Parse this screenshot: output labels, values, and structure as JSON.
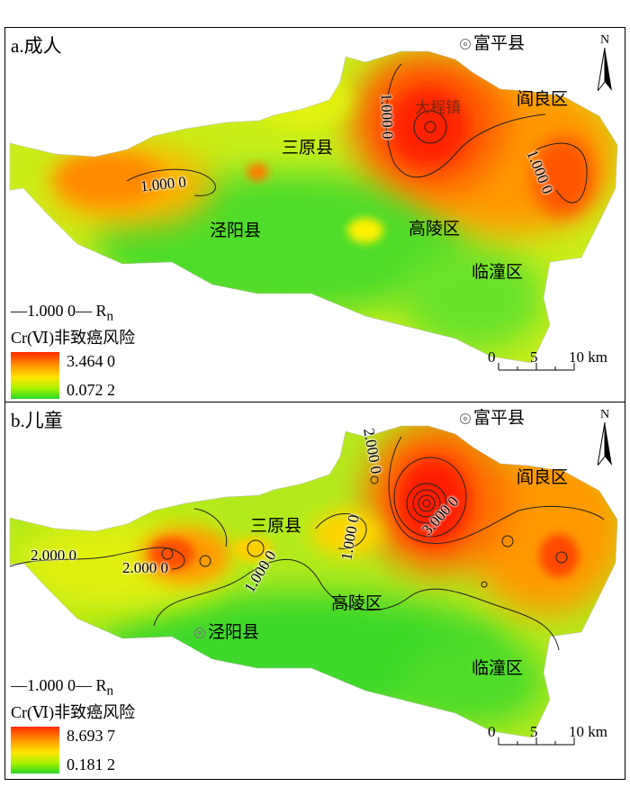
{
  "shared": {
    "legend_line": "—1.000 0— R",
    "legend_sub": "n",
    "legend_title": "Cr(Ⅵ)非致癌风险",
    "scale_labels": [
      "0",
      "5",
      "10 km"
    ],
    "north": "N",
    "places": {
      "fuping": "富平县",
      "yanliang": "阎良区",
      "sanyuan": "三原县",
      "jingyang": "泾阳县",
      "gaoling": "高陵区",
      "lintong": "临潼区",
      "dachengzhen": "大程镇"
    }
  },
  "panel_a": {
    "title": "a.成人",
    "legend_max": "3.464 0",
    "legend_min": "0.072 2",
    "contours": {
      "c1": "1.000 0",
      "c2": "1.000 0",
      "c3": "1.000 0"
    }
  },
  "panel_b": {
    "title": "b.儿童",
    "legend_max": "8.693 7",
    "legend_min": "0.181 2",
    "contours": {
      "c1": "2.000 0",
      "c2": "2.000 0",
      "c3": "2.000 0",
      "c4": "1.000 0",
      "c5": "1.000 0",
      "c6": "3.000 0"
    }
  },
  "colors": {
    "high": "#ff2a00",
    "mid_high": "#ff9a00",
    "mid": "#ffe600",
    "mid_low": "#a6f200",
    "low": "#2bd62b"
  }
}
